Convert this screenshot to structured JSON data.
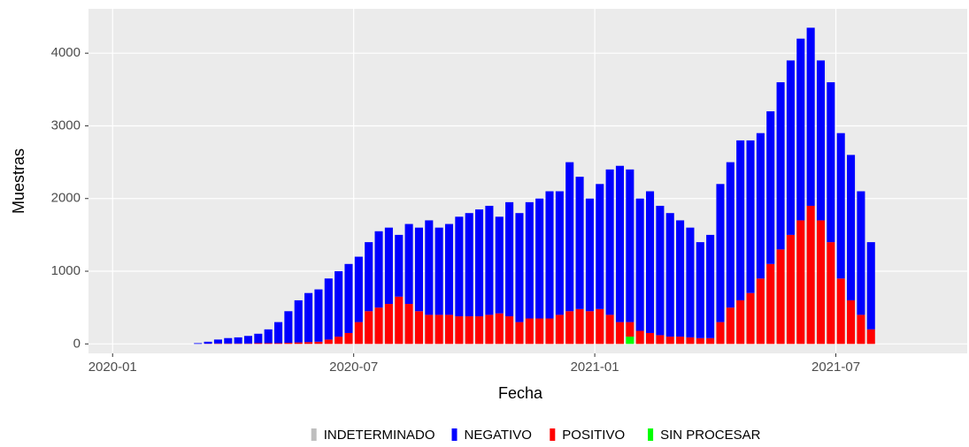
{
  "chart_data": {
    "type": "stacked-bar",
    "x_label": "Fecha",
    "y_label": "Muestras",
    "x": [
      "2020-03",
      "2020-03",
      "2020-03",
      "2020-03",
      "2020-04",
      "2020-04",
      "2020-04",
      "2020-04",
      "2020-05",
      "2020-05",
      "2020-05",
      "2020-05",
      "2020-06",
      "2020-06",
      "2020-06",
      "2020-06",
      "2020-07",
      "2020-07",
      "2020-07",
      "2020-07",
      "2020-08",
      "2020-08",
      "2020-08",
      "2020-08",
      "2020-09",
      "2020-09",
      "2020-09",
      "2020-09",
      "2020-10",
      "2020-10",
      "2020-10",
      "2020-10",
      "2020-11",
      "2020-11",
      "2020-11",
      "2020-11",
      "2020-12",
      "2020-12",
      "2020-12",
      "2020-12",
      "2021-01",
      "2021-01",
      "2021-01",
      "2021-01",
      "2021-02",
      "2021-02",
      "2021-02",
      "2021-02",
      "2021-03",
      "2021-03",
      "2021-03",
      "2021-03",
      "2021-04",
      "2021-04",
      "2021-04",
      "2021-04",
      "2021-05",
      "2021-05",
      "2021-05",
      "2021-05",
      "2021-06",
      "2021-06",
      "2021-06",
      "2021-06",
      "2021-07",
      "2021-07",
      "2021-07",
      "2021-07"
    ],
    "series": [
      {
        "name": "INDETERMINADO",
        "color": "#bebebe",
        "values": [
          0,
          0,
          0,
          0,
          0,
          0,
          0,
          0,
          0,
          0,
          0,
          0,
          0,
          0,
          0,
          0,
          0,
          0,
          0,
          0,
          0,
          0,
          0,
          0,
          0,
          0,
          0,
          0,
          0,
          0,
          0,
          0,
          0,
          0,
          0,
          0,
          0,
          0,
          0,
          0,
          0,
          0,
          0,
          0,
          0,
          0,
          0,
          0,
          0,
          0,
          0,
          0,
          0,
          0,
          0,
          0,
          0,
          0,
          0,
          0,
          0,
          0,
          0,
          0,
          0,
          0,
          0,
          0
        ]
      },
      {
        "name": "NEGATIVO",
        "color": "#0000ff",
        "values": [
          10,
          28,
          55,
          75,
          85,
          105,
          130,
          190,
          290,
          435,
          580,
          675,
          720,
          840,
          900,
          950,
          900,
          950,
          1050,
          1050,
          850,
          1100,
          1150,
          1300,
          1200,
          1250,
          1370,
          1420,
          1470,
          1500,
          1330,
          1570,
          1500,
          1600,
          1650,
          1750,
          1700,
          2050,
          1820,
          1550,
          1720,
          2000,
          2150,
          2100,
          1820,
          1950,
          1780,
          1700,
          1600,
          1510,
          1320,
          1420,
          1900,
          2000,
          2200,
          2100,
          2000,
          2100,
          2300,
          2400,
          2500,
          2450,
          2200,
          2200,
          2000,
          2000,
          1700,
          1200
        ]
      },
      {
        "name": "POSITIVO",
        "color": "#ff0000",
        "values": [
          0,
          2,
          5,
          5,
          5,
          5,
          10,
          10,
          10,
          15,
          20,
          25,
          30,
          60,
          100,
          150,
          300,
          450,
          500,
          550,
          650,
          550,
          450,
          400,
          400,
          400,
          380,
          380,
          380,
          400,
          420,
          380,
          300,
          350,
          350,
          350,
          400,
          450,
          480,
          450,
          480,
          400,
          300,
          200,
          180,
          150,
          120,
          100,
          100,
          90,
          80,
          80,
          300,
          500,
          600,
          700,
          900,
          1100,
          1300,
          1500,
          1700,
          1900,
          1700,
          1400,
          900,
          600,
          400,
          200
        ]
      },
      {
        "name": "SIN PROCESAR",
        "color": "#00ff00",
        "values": [
          0,
          0,
          0,
          0,
          0,
          0,
          0,
          0,
          0,
          0,
          0,
          0,
          0,
          0,
          0,
          0,
          0,
          0,
          0,
          0,
          0,
          0,
          0,
          0,
          0,
          0,
          0,
          0,
          0,
          0,
          0,
          0,
          0,
          0,
          0,
          0,
          0,
          0,
          0,
          0,
          0,
          0,
          0,
          100,
          0,
          0,
          0,
          0,
          0,
          0,
          0,
          0,
          0,
          0,
          0,
          0,
          0,
          0,
          0,
          0,
          0,
          0,
          0,
          0,
          0,
          0,
          0,
          0
        ]
      }
    ],
    "xlim": [
      "2019-12",
      "2021-09"
    ],
    "xticks": [
      "2020-01",
      "2020-07",
      "2021-01",
      "2021-07"
    ],
    "ylim": [
      -130,
      4610
    ],
    "yticks": [
      0,
      1000,
      2000,
      3000,
      4000
    ],
    "grid": true,
    "legend": "bottom"
  }
}
